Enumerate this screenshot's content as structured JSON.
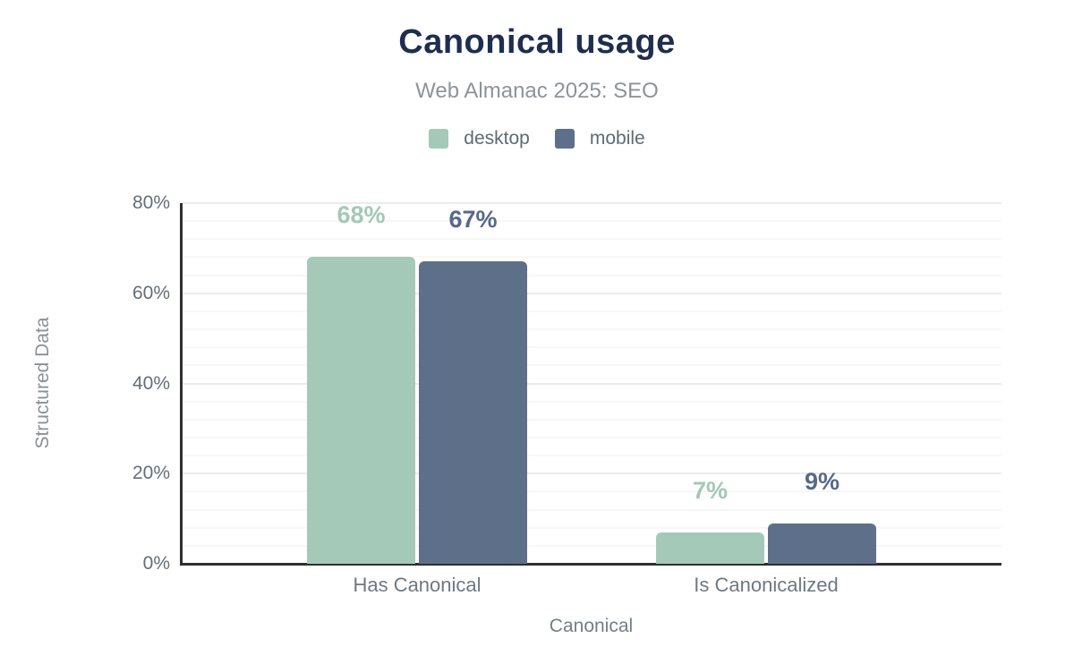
{
  "header": {
    "title": "Canonical usage",
    "subtitle": "Web Almanac 2025: SEO"
  },
  "chart_data": {
    "type": "bar",
    "title": "Canonical usage",
    "subtitle": "Web Almanac 2025: SEO",
    "categories": [
      "Has Canonical",
      "Is Canonicalized"
    ],
    "series": [
      {
        "name": "desktop",
        "values": [
          68,
          7
        ],
        "color": "#a4c9b8",
        "label_color": "#a3c8b7"
      },
      {
        "name": "mobile",
        "values": [
          67,
          9
        ],
        "color": "#5e7089",
        "label_color": "#56698b"
      }
    ],
    "xlabel": "Canonical",
    "ylabel": "Structured Data",
    "ylim": [
      0,
      80
    ],
    "ytick_step": 20,
    "y_minor_step": 4,
    "ytick_suffix": "%",
    "value_label_suffix": "%",
    "grid": true,
    "legend_position": "top",
    "colors": {
      "title": "#1e2e4f",
      "subtitle": "#8d9399",
      "axis_line": "#2f2f2f",
      "major_grid": "#ebebeb",
      "minor_grid": "#f7f7f7",
      "tick_text": "#646e78"
    }
  }
}
